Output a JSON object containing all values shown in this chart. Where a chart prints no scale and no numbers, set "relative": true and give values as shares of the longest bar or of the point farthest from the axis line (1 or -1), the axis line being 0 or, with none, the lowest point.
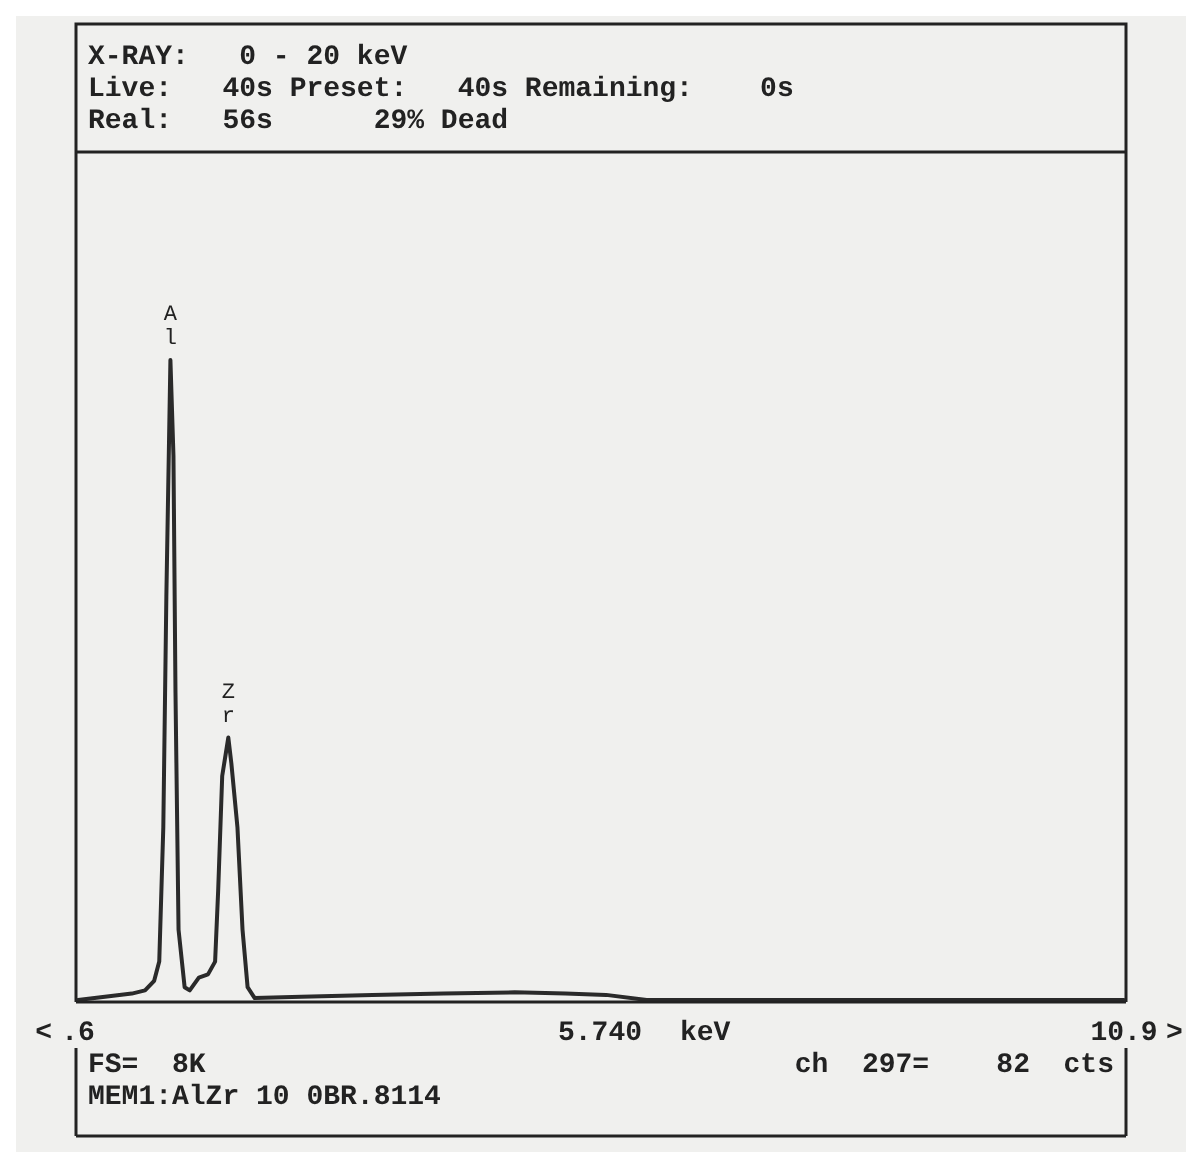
{
  "chart_data": {
    "type": "line",
    "relative": true,
    "x": [
      0.6,
      1.13,
      1.26,
      1.35,
      1.4,
      1.44,
      1.47,
      1.51,
      1.54,
      1.56,
      1.59,
      1.65,
      1.7,
      1.79,
      1.88,
      1.95,
      1.98,
      2.02,
      2.08,
      2.11,
      2.17,
      2.22,
      2.27,
      2.34,
      2.8,
      3.5,
      4.2,
      4.9,
      5.4,
      5.8,
      6.2,
      10.9
    ],
    "series": [
      {
        "color": "#2a2a2a",
        "values": [
          0,
          0.01,
          0.015,
          0.03,
          0.06,
          0.27,
          0.63,
          1,
          0.85,
          0.48,
          0.11,
          0.02,
          0.015,
          0.035,
          0.04,
          0.06,
          0.17,
          0.35,
          0.41,
          0.37,
          0.27,
          0.11,
          0.02,
          0.003,
          0.005,
          0.008,
          0.01,
          0.012,
          0.01,
          0.008,
          0,
          0
        ]
      }
    ],
    "xlim": [
      0.6,
      10.9
    ],
    "xticks": [
      {
        "value": 0.6,
        "label": ".6"
      },
      {
        "value": 5.74,
        "label": "5.740"
      },
      10.9
    ],
    "tick_labels": "x",
    "line_style": "solid",
    "annotations": [
      "X-RAY:   0 - 20 keV",
      "Live:   40s Preset:   40s Remaining:    0s",
      "Real:   56s      29% Dead",
      "FS=  8K",
      "ch  297=    82  cts",
      "MEM1:AlZr 10 0BR.8114",
      "<",
      ">",
      "keV",
      {
        "text": "Al",
        "x": 1.51,
        "y": 1
      },
      {
        "text": "Zr",
        "x": 2.08,
        "y": 0.41
      }
    ]
  }
}
